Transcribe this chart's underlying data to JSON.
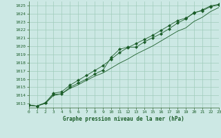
{
  "title": "Graphe pression niveau de la mer (hPa)",
  "bg_color": "#cce8e4",
  "grid_color": "#a0ccbb",
  "line_color": "#1a5c28",
  "xlim": [
    0,
    23
  ],
  "ylim": [
    1012.5,
    1025.5
  ],
  "yticks": [
    1013,
    1014,
    1015,
    1016,
    1017,
    1018,
    1019,
    1020,
    1021,
    1022,
    1023,
    1024,
    1025
  ],
  "xticks": [
    0,
    1,
    2,
    3,
    4,
    5,
    6,
    7,
    8,
    9,
    10,
    11,
    12,
    13,
    14,
    15,
    16,
    17,
    18,
    19,
    20,
    21,
    22,
    23
  ],
  "series1_y": [
    1012.8,
    1012.7,
    1013.1,
    1014.1,
    1014.2,
    1015.0,
    1015.5,
    1016.0,
    1016.6,
    1017.1,
    1018.7,
    1019.65,
    1019.9,
    1019.9,
    1020.55,
    1021.05,
    1021.55,
    1022.15,
    1022.85,
    1023.35,
    1024.15,
    1024.35,
    1024.85,
    1025.05
  ],
  "series2_y": [
    1012.8,
    1012.7,
    1013.1,
    1014.25,
    1014.45,
    1015.25,
    1015.85,
    1016.45,
    1017.05,
    1017.65,
    1018.45,
    1019.25,
    1019.85,
    1020.35,
    1020.85,
    1021.35,
    1021.95,
    1022.55,
    1023.15,
    1023.45,
    1024.05,
    1024.45,
    1024.95,
    1025.15
  ],
  "series3_y": [
    1012.8,
    1012.7,
    1013.0,
    1014.0,
    1014.2,
    1014.85,
    1015.3,
    1015.85,
    1016.35,
    1016.75,
    1017.35,
    1017.95,
    1018.45,
    1019.05,
    1019.55,
    1020.05,
    1020.65,
    1021.25,
    1021.85,
    1022.25,
    1023.05,
    1023.55,
    1024.25,
    1024.75
  ],
  "ylabel_fontsize": 5.0,
  "xlabel_fontsize": 5.0,
  "title_fontsize": 5.5,
  "linewidth": 0.6,
  "markersize": 2.2
}
